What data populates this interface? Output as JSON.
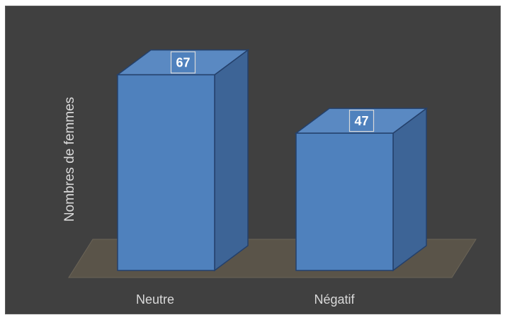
{
  "chart_data": {
    "type": "bar",
    "style": "3d-column",
    "categories": [
      "Neutre",
      "Négatif"
    ],
    "values": [
      67,
      47
    ],
    "data_labels": [
      "67",
      "47"
    ],
    "title": "",
    "xlabel": "",
    "ylabel": "Nombres de femmes",
    "ylim": [
      0,
      70
    ],
    "grid": false,
    "legend": "none",
    "colors": {
      "background": "#404040",
      "floor": "#5a5449",
      "bar_front": "#4f81bd",
      "bar_side": "#3d6496",
      "bar_top": "#5a89c2",
      "bar_edge": "#24406b",
      "text": "#d9d9d9",
      "data_label_box": "#4f81bd",
      "data_label_border": "#d9d9d9"
    }
  }
}
